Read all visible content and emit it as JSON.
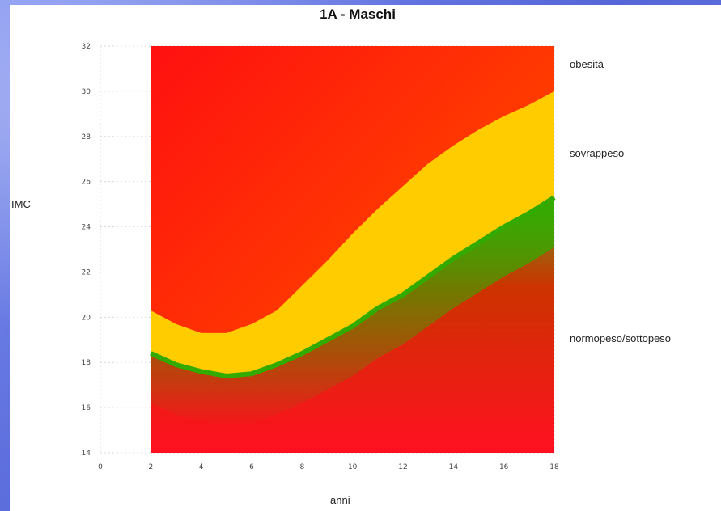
{
  "chart_data": {
    "type": "area",
    "title": "1A - Maschi",
    "xlabel": "anni",
    "ylabel": "IMC",
    "xlim": [
      0,
      18
    ],
    "ylim": [
      14,
      32
    ],
    "x_ticks": [
      0,
      2,
      4,
      6,
      8,
      10,
      12,
      14,
      16,
      18
    ],
    "y_ticks": [
      14,
      16,
      18,
      20,
      22,
      24,
      26,
      28,
      30,
      32
    ],
    "grid": true,
    "zones": [
      {
        "name": "normopeso/sottopeso",
        "color": "#ff1a1a"
      },
      {
        "name": "sovrappeso",
        "color": "#ffcc00"
      },
      {
        "name": "obesità",
        "color": "#ff3300"
      }
    ],
    "series": [
      {
        "color": "#33aa00",
        "x": [
          2,
          3,
          4,
          5,
          6,
          7,
          8,
          9,
          10,
          11,
          12,
          13,
          14,
          15,
          16,
          17,
          18
        ],
        "y": [
          18.4,
          17.9,
          17.6,
          17.4,
          17.5,
          17.9,
          18.4,
          19.0,
          19.6,
          20.4,
          21.0,
          21.8,
          22.6,
          23.3,
          24.0,
          24.6,
          25.3
        ]
      },
      {
        "color": "#ffcc00",
        "x": [
          2,
          3,
          4,
          5,
          6,
          7,
          8,
          9,
          10,
          11,
          12,
          13,
          14,
          15,
          16,
          17,
          18
        ],
        "y": [
          20.3,
          19.7,
          19.3,
          19.3,
          19.7,
          20.3,
          21.4,
          22.5,
          23.7,
          24.8,
          25.8,
          26.8,
          27.6,
          28.3,
          28.9,
          29.4,
          30.0
        ]
      }
    ]
  }
}
